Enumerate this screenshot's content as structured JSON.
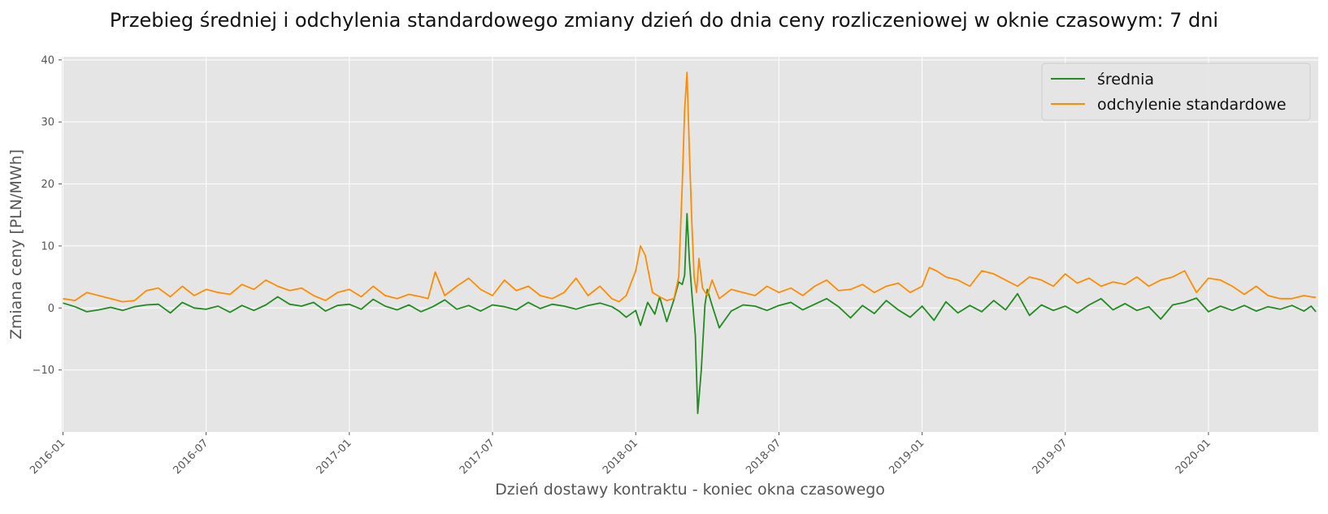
{
  "chart_data": {
    "type": "line",
    "title": "Przebieg średniej i odchylenia standardowego zmiany dzień do dnia ceny rozliczeniowej w oknie czasowym: 7 dni",
    "xlabel": "Dzień dostawy kontraktu - koniec okna czasowego",
    "ylabel": "Zmiana ceny [PLN/MWh]",
    "x_tick_labels": [
      "2016-01",
      "2016-07",
      "2017-01",
      "2017-07",
      "2018-01",
      "2018-07",
      "2019-01",
      "2019-07",
      "2020-01"
    ],
    "x_tick_positions_months": [
      0,
      6,
      12,
      18,
      24,
      30,
      36,
      42,
      48
    ],
    "x_range_months": [
      -0.05,
      52.6
    ],
    "y_ticks": [
      -10,
      0,
      10,
      20,
      30,
      40
    ],
    "y_tick_labels": [
      "−10",
      "0",
      "10",
      "20",
      "30",
      "40"
    ],
    "ylim": [
      -20,
      40.5
    ],
    "grid": true,
    "legend_position": "top-right",
    "colors": {
      "background": "#e5e5e5",
      "grid": "#ffffff",
      "text": "#555555",
      "title": "#111111"
    },
    "series": [
      {
        "name": "średnia",
        "color": "#228b22",
        "x_months": [
          0.0,
          0.5,
          1.0,
          1.5,
          2.0,
          2.5,
          3.0,
          3.5,
          4.0,
          4.5,
          5.0,
          5.5,
          6.0,
          6.5,
          7.0,
          7.5,
          8.0,
          8.5,
          9.0,
          9.5,
          10.0,
          10.5,
          11.0,
          11.5,
          12.0,
          12.5,
          13.0,
          13.5,
          14.0,
          14.5,
          15.0,
          15.5,
          16.0,
          16.5,
          17.0,
          17.5,
          18.0,
          18.5,
          19.0,
          19.5,
          20.0,
          20.5,
          21.0,
          21.5,
          22.0,
          22.5,
          23.0,
          23.3,
          23.6,
          24.0,
          24.2,
          24.5,
          24.8,
          25.0,
          25.3,
          25.6,
          25.8,
          25.95,
          26.05,
          26.15,
          26.25,
          26.35,
          26.5,
          26.6,
          26.75,
          26.9,
          27.0,
          27.2,
          27.5,
          28.0,
          28.5,
          29.0,
          29.5,
          30.0,
          30.5,
          31.0,
          31.5,
          32.0,
          32.5,
          33.0,
          33.5,
          34.0,
          34.5,
          35.0,
          35.5,
          36.0,
          36.5,
          37.0,
          37.5,
          38.0,
          38.5,
          39.0,
          39.5,
          40.0,
          40.5,
          41.0,
          41.5,
          42.0,
          42.5,
          43.0,
          43.5,
          44.0,
          44.5,
          45.0,
          45.5,
          46.0,
          46.5,
          47.0,
          47.5,
          48.0,
          48.5,
          49.0,
          49.5,
          50.0,
          50.5,
          51.0,
          51.5,
          52.0,
          52.3,
          52.5
        ],
        "values": [
          0.8,
          0.2,
          -0.6,
          -0.3,
          0.1,
          -0.4,
          0.2,
          0.5,
          0.6,
          -0.8,
          0.9,
          0.0,
          -0.2,
          0.3,
          -0.7,
          0.4,
          -0.4,
          0.5,
          1.8,
          0.6,
          0.3,
          0.9,
          -0.5,
          0.4,
          0.6,
          -0.2,
          1.4,
          0.3,
          -0.3,
          0.5,
          -0.6,
          0.2,
          1.3,
          -0.2,
          0.4,
          -0.5,
          0.5,
          0.2,
          -0.3,
          0.9,
          -0.1,
          0.6,
          0.3,
          -0.2,
          0.4,
          0.8,
          0.2,
          -0.5,
          -1.5,
          -0.4,
          -2.8,
          0.9,
          -1.0,
          1.8,
          -2.2,
          1.3,
          4.2,
          3.8,
          5.3,
          15.2,
          7.5,
          2.5,
          -4.5,
          -17.0,
          -10.0,
          0.5,
          3.0,
          0.4,
          -3.2,
          -0.5,
          0.5,
          0.3,
          -0.4,
          0.4,
          0.9,
          -0.3,
          0.6,
          1.5,
          0.2,
          -1.6,
          0.4,
          -0.9,
          1.2,
          -0.3,
          -1.5,
          0.3,
          -2.0,
          1.0,
          -0.8,
          0.4,
          -0.6,
          1.2,
          -0.3,
          2.3,
          -1.2,
          0.5,
          -0.4,
          0.3,
          -0.8,
          0.5,
          1.5,
          -0.3,
          0.7,
          -0.4,
          0.2,
          -1.8,
          0.5,
          0.9,
          1.6,
          -0.6,
          0.3,
          -0.4,
          0.4,
          -0.5,
          0.2,
          -0.2,
          0.4,
          -0.5,
          0.3,
          -0.6
        ]
      },
      {
        "name": "odchylenie standardowe",
        "color": "#ff8c00",
        "x_months": [
          0.0,
          0.5,
          1.0,
          1.5,
          2.0,
          2.5,
          3.0,
          3.5,
          4.0,
          4.5,
          5.0,
          5.5,
          6.0,
          6.5,
          7.0,
          7.5,
          8.0,
          8.5,
          9.0,
          9.5,
          10.0,
          10.5,
          11.0,
          11.5,
          12.0,
          12.5,
          13.0,
          13.5,
          14.0,
          14.5,
          15.0,
          15.3,
          15.6,
          16.0,
          16.5,
          17.0,
          17.5,
          18.0,
          18.5,
          19.0,
          19.5,
          20.0,
          20.5,
          21.0,
          21.5,
          22.0,
          22.5,
          23.0,
          23.3,
          23.6,
          24.0,
          24.2,
          24.4,
          24.7,
          25.0,
          25.3,
          25.6,
          25.8,
          25.95,
          26.05,
          26.15,
          26.25,
          26.35,
          26.45,
          26.55,
          26.65,
          26.8,
          27.0,
          27.2,
          27.5,
          28.0,
          28.5,
          29.0,
          29.5,
          30.0,
          30.5,
          31.0,
          31.5,
          32.0,
          32.5,
          33.0,
          33.5,
          34.0,
          34.5,
          35.0,
          35.5,
          36.0,
          36.3,
          36.6,
          37.0,
          37.5,
          38.0,
          38.5,
          39.0,
          39.5,
          40.0,
          40.5,
          41.0,
          41.5,
          42.0,
          42.5,
          43.0,
          43.5,
          44.0,
          44.5,
          45.0,
          45.5,
          46.0,
          46.5,
          47.0,
          47.5,
          48.0,
          48.5,
          49.0,
          49.5,
          50.0,
          50.5,
          51.0,
          51.5,
          52.0,
          52.3,
          52.5
        ],
        "values": [
          1.5,
          1.2,
          2.5,
          2.0,
          1.5,
          1.0,
          1.2,
          2.8,
          3.2,
          1.8,
          3.5,
          2.0,
          3.0,
          2.5,
          2.2,
          3.8,
          3.0,
          4.5,
          3.5,
          2.8,
          3.2,
          2.0,
          1.2,
          2.5,
          3.0,
          1.8,
          3.5,
          2.0,
          1.5,
          2.2,
          1.8,
          1.5,
          5.8,
          2.0,
          3.5,
          4.8,
          3.0,
          2.0,
          4.5,
          2.8,
          3.5,
          2.0,
          1.5,
          2.5,
          4.8,
          2.0,
          3.5,
          1.5,
          1.0,
          2.0,
          6.0,
          10.0,
          8.5,
          2.5,
          1.8,
          1.2,
          1.5,
          5.0,
          20.0,
          32.0,
          38.0,
          25.0,
          14.0,
          5.0,
          2.5,
          8.0,
          3.2,
          2.0,
          4.5,
          1.5,
          3.0,
          2.5,
          2.0,
          3.5,
          2.5,
          3.2,
          2.0,
          3.5,
          4.5,
          2.8,
          3.0,
          3.8,
          2.5,
          3.5,
          4.0,
          2.5,
          3.5,
          6.5,
          6.0,
          5.0,
          4.5,
          3.5,
          6.0,
          5.5,
          4.5,
          3.5,
          5.0,
          4.5,
          3.5,
          5.5,
          4.0,
          4.8,
          3.5,
          4.2,
          3.8,
          5.0,
          3.5,
          4.5,
          5.0,
          6.0,
          2.5,
          4.8,
          4.5,
          3.5,
          2.2,
          3.5,
          2.0,
          1.5,
          1.5,
          2.0,
          1.8,
          1.7
        ]
      }
    ]
  }
}
